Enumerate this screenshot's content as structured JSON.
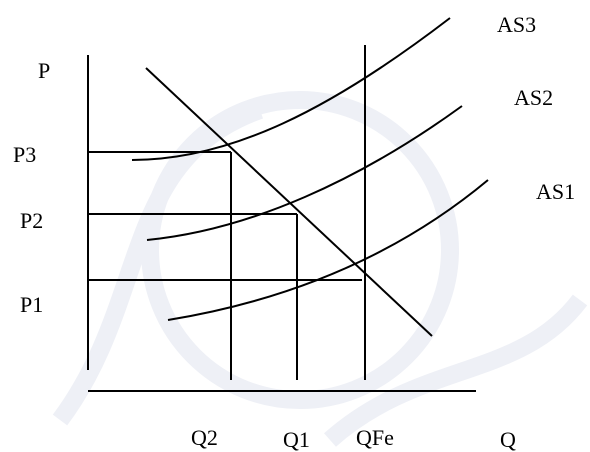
{
  "diagram": {
    "y_axis_label": "P",
    "x_axis_label": "Q",
    "price_labels": {
      "p3": "P3",
      "p2": "P2",
      "p1": "P1"
    },
    "quantity_labels": {
      "q2": "Q2",
      "q1": "Q1",
      "qfe": "QFe"
    },
    "supply_curves": {
      "as3": "AS3",
      "as2": "AS2",
      "as1": "AS1"
    }
  }
}
